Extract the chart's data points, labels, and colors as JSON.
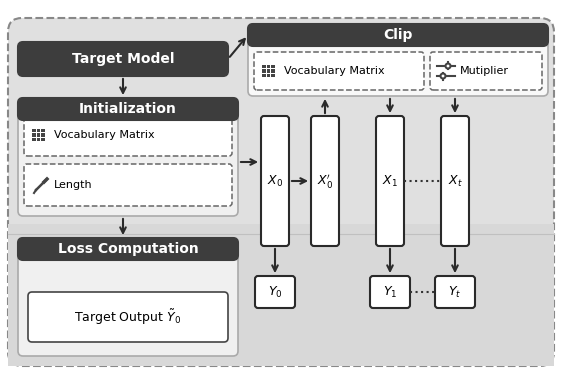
{
  "background_color": "#e0e0e0",
  "dark_header_color": "#3d3d3d",
  "header_text_color": "#ffffff",
  "light_box_color": "#efefef",
  "white_color": "#ffffff",
  "border_color": "#2a2a2a",
  "arrow_color": "#2a2a2a",
  "clip_label": "Clip",
  "init_label": "Initialization",
  "loss_label": "Loss Computation",
  "vocab_matrix_label": "Vocabulary Matrix",
  "multiplier_label": "Mutiplier",
  "vocab_matrix_label2": "Vocabulary Matrix",
  "length_label": "Length",
  "target_output_label": "Target Output $\\tilde{Y}_0$",
  "target_model_label": "Target Model",
  "x0_label": "$X_0$",
  "x0p_label": "$X_0'$",
  "x1_label": "$X_1$",
  "xt_label": "$X_t$",
  "y0_label": "$Y_0$",
  "y1_label": "$Y_1$",
  "yt_label": "$Y_t$"
}
